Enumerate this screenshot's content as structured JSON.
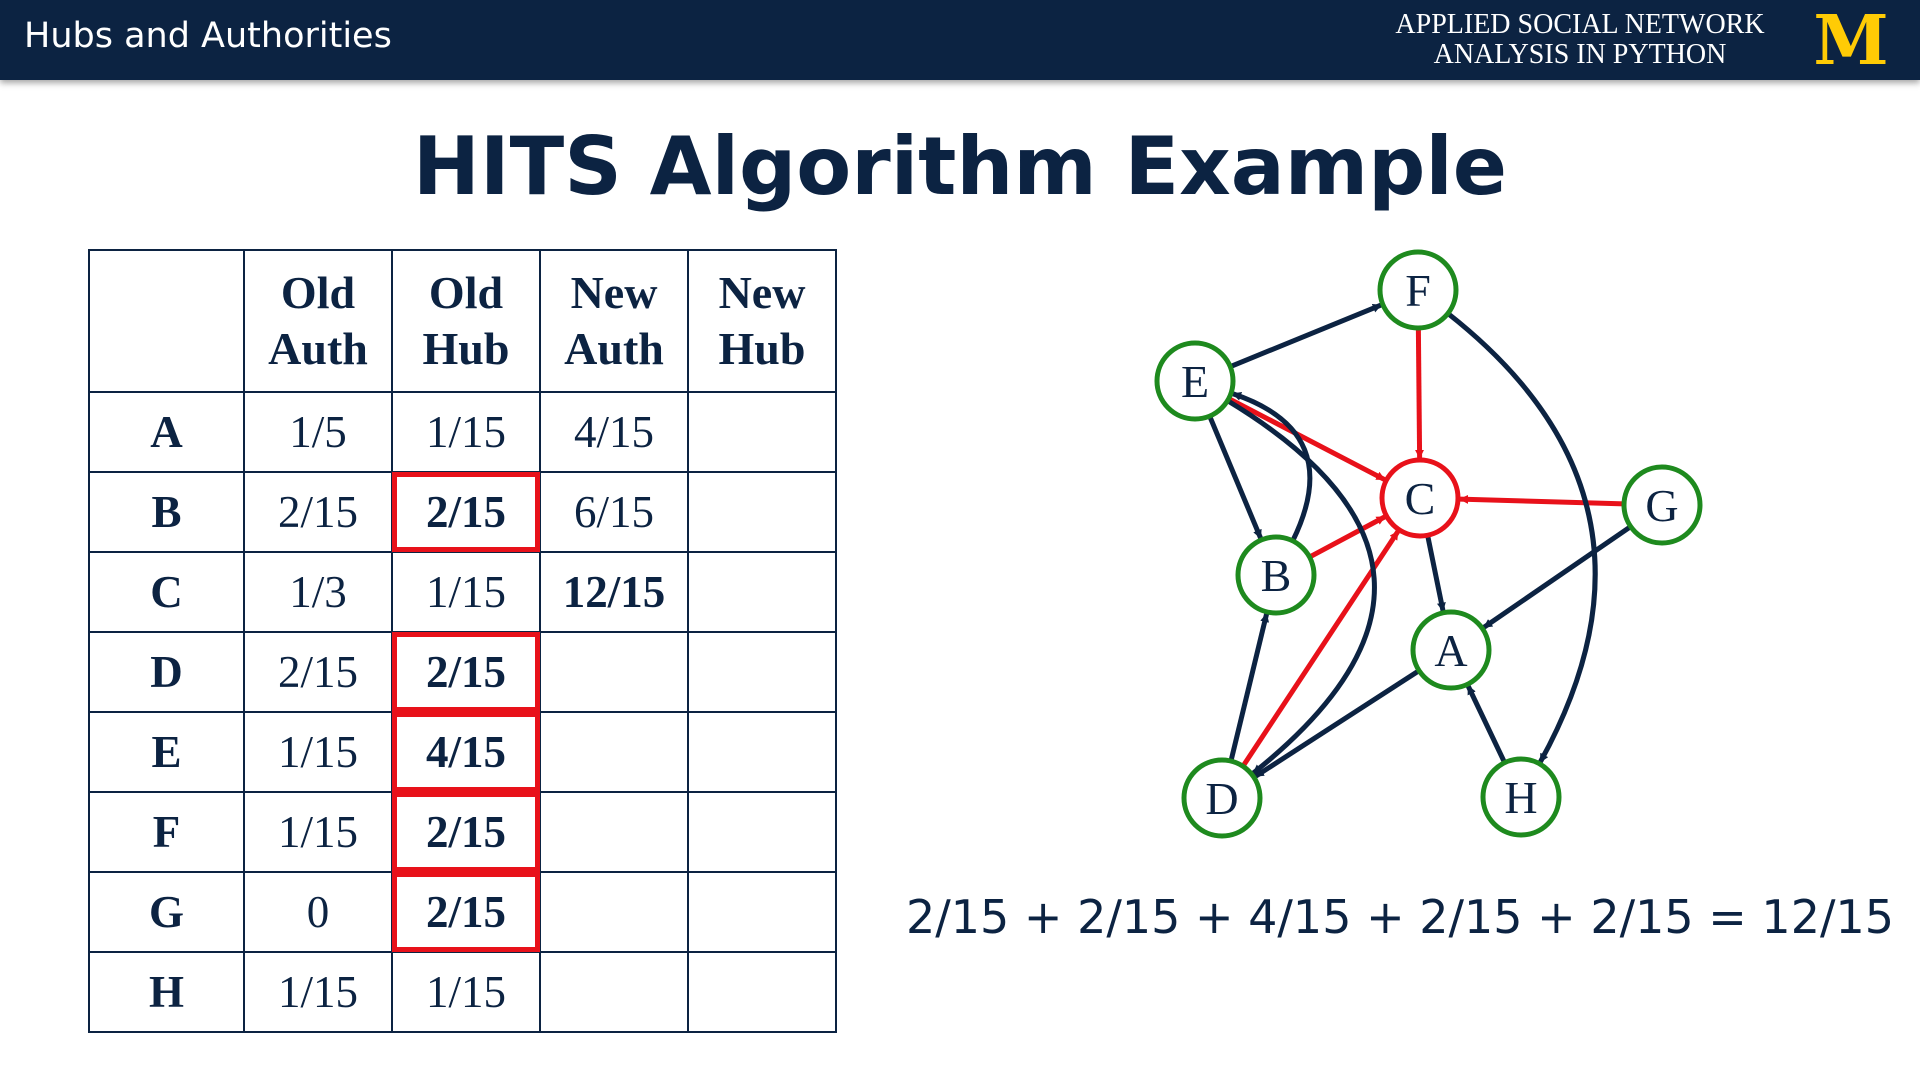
{
  "header": {
    "lecture_title": "Hubs and Authorities",
    "course_line1": "APPLIED SOCIAL NETWORK",
    "course_line2": "ANALYSIS IN PYTHON",
    "logo_letter": "M",
    "bar_color": "#0c2342",
    "logo_color": "#ffcb05"
  },
  "slide": {
    "title": "HITS Algorithm Example"
  },
  "table": {
    "columns": [
      {
        "line1": "",
        "line2": ""
      },
      {
        "line1": "Old",
        "line2": "Auth"
      },
      {
        "line1": "Old",
        "line2": "Hub"
      },
      {
        "line1": "New",
        "line2": "Auth"
      },
      {
        "line1": "New",
        "line2": "Hub"
      }
    ],
    "rows": [
      {
        "node": "A",
        "old_auth": "1/5",
        "old_hub": "1/15",
        "new_auth": "4/15",
        "new_hub": ""
      },
      {
        "node": "B",
        "old_auth": "2/15",
        "old_hub": "2/15",
        "new_auth": "6/15",
        "new_hub": ""
      },
      {
        "node": "C",
        "old_auth": "1/3",
        "old_hub": "1/15",
        "new_auth": "12/15",
        "new_hub": ""
      },
      {
        "node": "D",
        "old_auth": "2/15",
        "old_hub": "2/15",
        "new_auth": "",
        "new_hub": ""
      },
      {
        "node": "E",
        "old_auth": "1/15",
        "old_hub": "4/15",
        "new_auth": "",
        "new_hub": ""
      },
      {
        "node": "F",
        "old_auth": "1/15",
        "old_hub": "2/15",
        "new_auth": "",
        "new_hub": ""
      },
      {
        "node": "G",
        "old_auth": "0",
        "old_hub": "2/15",
        "new_auth": "",
        "new_hub": ""
      },
      {
        "node": "H",
        "old_auth": "1/15",
        "old_hub": "1/15",
        "new_auth": "",
        "new_hub": ""
      }
    ],
    "highlight_color": "#e8111a"
  },
  "graph": {
    "nodes": [
      "A",
      "B",
      "C",
      "D",
      "E",
      "F",
      "G",
      "H"
    ],
    "edges": [
      {
        "from": "E",
        "to": "F",
        "highlight": false
      },
      {
        "from": "F",
        "to": "C",
        "highlight": true
      },
      {
        "from": "E",
        "to": "C",
        "highlight": true
      },
      {
        "from": "G",
        "to": "C",
        "highlight": true
      },
      {
        "from": "B",
        "to": "C",
        "highlight": true
      },
      {
        "from": "D",
        "to": "C",
        "highlight": true
      },
      {
        "from": "E",
        "to": "B",
        "highlight": false
      },
      {
        "from": "B",
        "to": "E",
        "highlight": false
      },
      {
        "from": "C",
        "to": "A",
        "highlight": false
      },
      {
        "from": "G",
        "to": "A",
        "highlight": false
      },
      {
        "from": "A",
        "to": "D",
        "highlight": false
      },
      {
        "from": "D",
        "to": "B",
        "highlight": false
      },
      {
        "from": "H",
        "to": "A",
        "highlight": false
      },
      {
        "from": "E",
        "to": "D",
        "highlight": false
      },
      {
        "from": "F",
        "to": "H",
        "highlight": false
      }
    ],
    "node_border_color": "#1e8a1e",
    "edge_color": "#0c2342",
    "highlight_color": "#e8111a"
  },
  "equation": "2/15 + 2/15 + 4/15 + 2/15 + 2/15 = 12/15"
}
